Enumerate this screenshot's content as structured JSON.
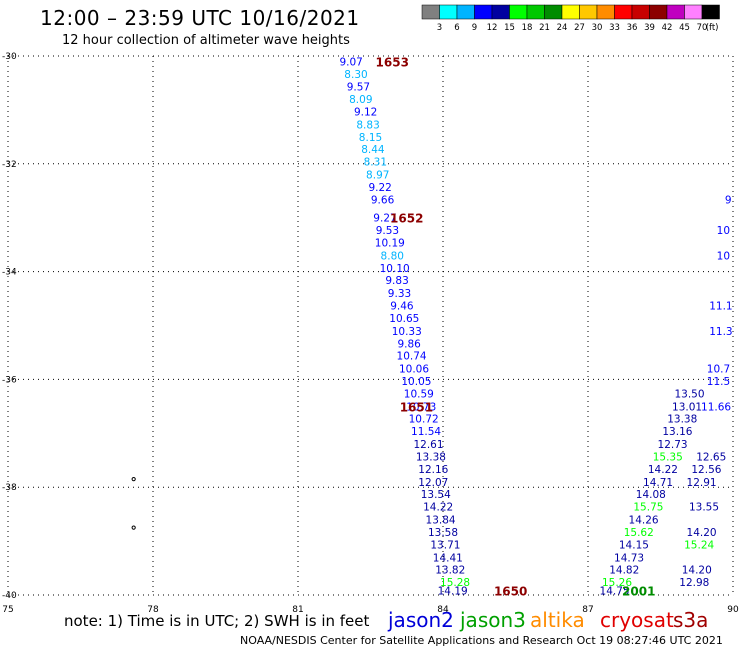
{
  "header": {
    "title": "12:00 – 23:59 UTC 10/16/2021",
    "subtitle": "12 hour collection of altimeter wave heights"
  },
  "footer": {
    "note": "note:  1) Time is in UTC;  2) SWH is in feet",
    "credit": "NOAA/NESDIS Center for Satellite Applications and Research     Oct 19 08:27:46 UTC 2021"
  },
  "satellites": [
    {
      "name": "jason2",
      "color": "#0000d8"
    },
    {
      "name": "jason3",
      "color": "#00a000"
    },
    {
      "name": "altika",
      "color": "#ff8c00"
    },
    {
      "name": "cryosat",
      "color": "#e00000"
    },
    {
      "name": "s3a",
      "color": "#a00000"
    }
  ],
  "chart_data": {
    "type": "scatter",
    "xlim": [
      75,
      90
    ],
    "ylim": [
      -40,
      -30
    ],
    "xticks": [
      75,
      78,
      81,
      84,
      87,
      90
    ],
    "yticks": [
      -30,
      -32,
      -34,
      -36,
      -38,
      -40
    ],
    "grid": true,
    "color_scale": {
      "unit": "(ft)",
      "labels": [
        "3",
        "6",
        "9",
        "12",
        "15",
        "18",
        "21",
        "24",
        "27",
        "30",
        "33",
        "36",
        "39",
        "42",
        "45",
        "70"
      ],
      "colors": [
        "#808080",
        "#00ffff",
        "#00b4ff",
        "#0000ff",
        "#0000a0",
        "#00ff00",
        "#00c800",
        "#008c00",
        "#ffff00",
        "#ffc800",
        "#ff8c00",
        "#ff0000",
        "#c80000",
        "#8c0000",
        "#c000c0",
        "#ff80ff",
        "#000000"
      ]
    },
    "tracks": [
      {
        "points": [
          {
            "x": 82.1,
            "y": -30.1,
            "v": "9.07"
          },
          {
            "x": 82.2,
            "y": -30.33,
            "v": "8.30"
          },
          {
            "x": 82.25,
            "y": -30.57,
            "v": "9.57"
          },
          {
            "x": 82.3,
            "y": -30.8,
            "v": "8.09"
          },
          {
            "x": 82.4,
            "y": -31.03,
            "v": "9.12"
          },
          {
            "x": 82.45,
            "y": -31.27,
            "v": "8.83"
          },
          {
            "x": 82.5,
            "y": -31.5,
            "v": "8.15"
          },
          {
            "x": 82.55,
            "y": -31.73,
            "v": "8.44"
          },
          {
            "x": 82.6,
            "y": -31.96,
            "v": "8.31"
          },
          {
            "x": 82.65,
            "y": -32.2,
            "v": "8.97"
          },
          {
            "x": 82.7,
            "y": -32.43,
            "v": "9.22"
          },
          {
            "x": 82.75,
            "y": -32.66,
            "v": "9.66"
          },
          {
            "x": 82.8,
            "y": -33.0,
            "v": "9.27"
          },
          {
            "x": 82.85,
            "y": -33.23,
            "v": "9.53"
          },
          {
            "x": 82.9,
            "y": -33.46,
            "v": "10.19"
          },
          {
            "x": 82.95,
            "y": -33.7,
            "v": "8.80"
          },
          {
            "x": 83.0,
            "y": -33.93,
            "v": "10.10"
          },
          {
            "x": 83.05,
            "y": -34.16,
            "v": "9.83"
          },
          {
            "x": 83.1,
            "y": -34.4,
            "v": "9.33"
          },
          {
            "x": 83.15,
            "y": -34.63,
            "v": "9.46"
          },
          {
            "x": 83.2,
            "y": -34.86,
            "v": "10.65"
          },
          {
            "x": 83.25,
            "y": -35.1,
            "v": "10.33"
          },
          {
            "x": 83.3,
            "y": -35.33,
            "v": "9.86"
          },
          {
            "x": 83.35,
            "y": -35.56,
            "v": "10.74"
          },
          {
            "x": 83.4,
            "y": -35.8,
            "v": "10.06"
          },
          {
            "x": 83.45,
            "y": -36.03,
            "v": "10.05"
          },
          {
            "x": 83.5,
            "y": -36.26,
            "v": "10.59"
          },
          {
            "x": 83.55,
            "y": -36.5,
            "v": "10.73"
          },
          {
            "x": 83.6,
            "y": -36.73,
            "v": "10.72"
          },
          {
            "x": 83.65,
            "y": -36.96,
            "v": "11.54"
          }
        ]
      },
      {
        "points": [
          {
            "x": 83.7,
            "y": -37.2,
            "v": "12.61"
          },
          {
            "x": 83.75,
            "y": -37.43,
            "v": "13.38"
          },
          {
            "x": 83.8,
            "y": -37.66,
            "v": "12.16"
          },
          {
            "x": 83.8,
            "y": -37.9,
            "v": "12.07"
          },
          {
            "x": 83.85,
            "y": -38.13,
            "v": "13.54"
          },
          {
            "x": 83.9,
            "y": -38.36,
            "v": "14.22"
          },
          {
            "x": 83.95,
            "y": -38.6,
            "v": "13.84"
          },
          {
            "x": 84.0,
            "y": -38.83,
            "v": "13.58"
          },
          {
            "x": 84.05,
            "y": -39.06,
            "v": "13.71"
          },
          {
            "x": 84.1,
            "y": -39.3,
            "v": "14.41"
          },
          {
            "x": 84.15,
            "y": -39.53,
            "v": "13.82"
          },
          {
            "x": 84.25,
            "y": -39.76,
            "v": "15.28"
          },
          {
            "x": 84.2,
            "y": -39.92,
            "v": "14.19"
          }
        ]
      },
      {
        "points": [
          {
            "x": 87.55,
            "y": -39.92,
            "v": "14.75"
          },
          {
            "x": 87.6,
            "y": -39.76,
            "v": "15.26"
          },
          {
            "x": 87.75,
            "y": -39.53,
            "v": "14.82"
          },
          {
            "x": 87.85,
            "y": -39.3,
            "v": "14.73"
          },
          {
            "x": 87.95,
            "y": -39.06,
            "v": "14.15"
          },
          {
            "x": 88.05,
            "y": -38.83,
            "v": "15.62"
          },
          {
            "x": 88.15,
            "y": -38.6,
            "v": "14.26"
          },
          {
            "x": 88.25,
            "y": -38.36,
            "v": "15.75"
          },
          {
            "x": 88.3,
            "y": -38.13,
            "v": "14.08"
          },
          {
            "x": 88.45,
            "y": -37.9,
            "v": "14.71"
          },
          {
            "x": 88.55,
            "y": -37.66,
            "v": "14.22"
          },
          {
            "x": 88.65,
            "y": -37.43,
            "v": "15.35"
          },
          {
            "x": 88.75,
            "y": -37.2,
            "v": "12.73"
          },
          {
            "x": 88.85,
            "y": -36.96,
            "v": "13.16"
          },
          {
            "x": 88.95,
            "y": -36.73,
            "v": "13.38"
          },
          {
            "x": 89.05,
            "y": -36.5,
            "v": "13.01"
          },
          {
            "x": 89.1,
            "y": -36.26,
            "v": "13.50"
          }
        ]
      },
      {
        "points": [
          {
            "x": 89.2,
            "y": -39.76,
            "v": "12.98"
          },
          {
            "x": 89.25,
            "y": -39.53,
            "v": "14.20"
          },
          {
            "x": 89.3,
            "y": -39.06,
            "v": "15.24"
          },
          {
            "x": 89.35,
            "y": -38.83,
            "v": "14.20"
          },
          {
            "x": 89.4,
            "y": -38.36,
            "v": "13.55"
          },
          {
            "x": 89.35,
            "y": -37.9,
            "v": "12.91"
          },
          {
            "x": 89.45,
            "y": -37.66,
            "v": "12.56"
          },
          {
            "x": 89.55,
            "y": -37.43,
            "v": "12.65"
          }
        ]
      },
      {
        "points": [
          {
            "x": 89.7,
            "y": -35.8,
            "v": "10.7"
          },
          {
            "x": 89.75,
            "y": -35.1,
            "v": "11.3"
          },
          {
            "x": 89.75,
            "y": -34.63,
            "v": "11.1"
          },
          {
            "x": 89.8,
            "y": -33.7,
            "v": "10"
          },
          {
            "x": 89.8,
            "y": -33.23,
            "v": "10"
          },
          {
            "x": 89.9,
            "y": -32.66,
            "v": "9"
          },
          {
            "x": 89.7,
            "y": -36.03,
            "v": "11.5"
          },
          {
            "x": 89.65,
            "y": -36.5,
            "v": "11.66"
          }
        ]
      }
    ],
    "time_labels": [
      {
        "x": 83.45,
        "y": -36.5,
        "v": "1651"
      },
      {
        "x": 82.95,
        "y": -30.1,
        "v": "1653"
      },
      {
        "x": 83.25,
        "y": -33.0,
        "v": "1652"
      },
      {
        "x": 85.4,
        "y": -39.92,
        "v": "1650"
      },
      {
        "x": 88.05,
        "y": -39.92,
        "v": "2001"
      }
    ],
    "markers": [
      {
        "x": 77.6,
        "y": -37.85
      },
      {
        "x": 77.6,
        "y": -38.75
      }
    ]
  }
}
